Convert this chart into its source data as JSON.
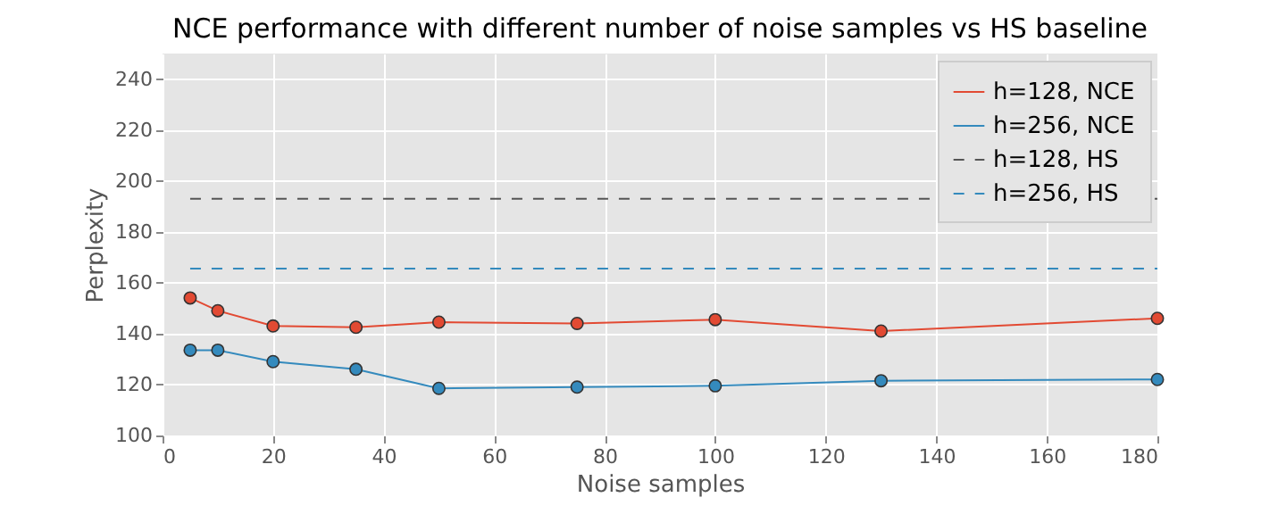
{
  "chart_data": {
    "type": "line",
    "title": "NCE performance with different number of noise samples vs HS baseline",
    "xlabel": "Noise samples",
    "ylabel": "Perplexity",
    "xlim": [
      0,
      180
    ],
    "xticks": [
      0,
      20,
      40,
      60,
      80,
      100,
      120,
      140,
      160,
      180
    ],
    "ylim": [
      100,
      250
    ],
    "yticks": [
      100,
      120,
      140,
      160,
      180,
      200,
      220,
      240
    ],
    "grid": true,
    "legend": "top right",
    "series": [
      {
        "name": "h=128, NCE",
        "color": "#e24a33",
        "marker": "circle",
        "line_style": "solid",
        "x": [
          5,
          10,
          20,
          35,
          50,
          75,
          100,
          130,
          180
        ],
        "values": [
          154,
          149,
          143,
          142.5,
          144.5,
          144,
          145.5,
          141,
          146
        ]
      },
      {
        "name": "h=256, NCE",
        "color": "#348abd",
        "marker": "circle",
        "line_style": "solid",
        "x": [
          5,
          10,
          20,
          35,
          50,
          75,
          100,
          130,
          180
        ],
        "values": [
          133.5,
          133.5,
          129,
          126,
          118.5,
          119,
          119.5,
          121.5,
          122
        ]
      },
      {
        "name": "h=128, HS",
        "color": "#555555",
        "marker": "none",
        "line_style": "dashed",
        "x": [
          5,
          180
        ],
        "values": [
          193,
          193
        ]
      },
      {
        "name": "h=256, HS",
        "color": "#348abd",
        "marker": "none",
        "line_style": "dashed",
        "x": [
          5,
          180
        ],
        "values": [
          165.5,
          165.5
        ]
      }
    ]
  }
}
